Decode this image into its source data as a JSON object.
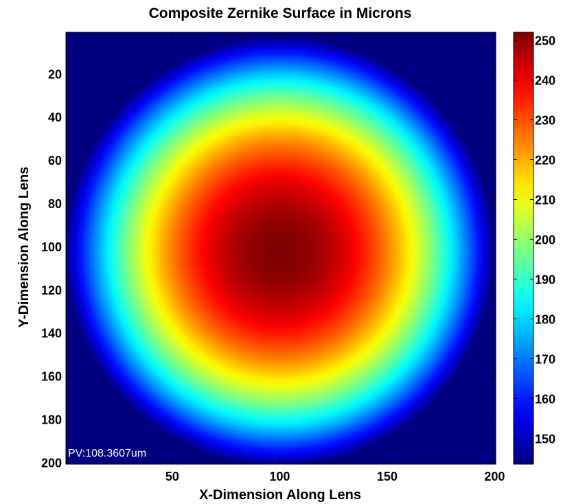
{
  "chart_data": {
    "type": "heatmap",
    "title": "Composite Zernike Surface in Microns",
    "xlabel": "X-Dimension Along Lens",
    "ylabel": "Y-Dimension Along Lens",
    "xlim": [
      0.5,
      200.5
    ],
    "ylim": [
      0.5,
      200.5
    ],
    "y_direction": "reversed",
    "x_ticks": [
      50,
      100,
      150,
      200
    ],
    "y_ticks": [
      20,
      40,
      60,
      80,
      100,
      120,
      140,
      160,
      180,
      200
    ],
    "colormap": "jet",
    "clim": [
      143.5,
      252
    ],
    "colorbar_ticks": [
      150,
      160,
      170,
      180,
      190,
      200,
      210,
      220,
      230,
      240,
      250
    ],
    "surface": {
      "shape": "radially symmetric dome",
      "center_x": 100,
      "center_y": 102,
      "aperture_radius": 100,
      "peak_value": 252,
      "edge_value": 143.6,
      "outside_aperture_value": 143.6
    },
    "annotation": "PV:108.3607um",
    "grid": false,
    "colorbar_position": "right"
  }
}
